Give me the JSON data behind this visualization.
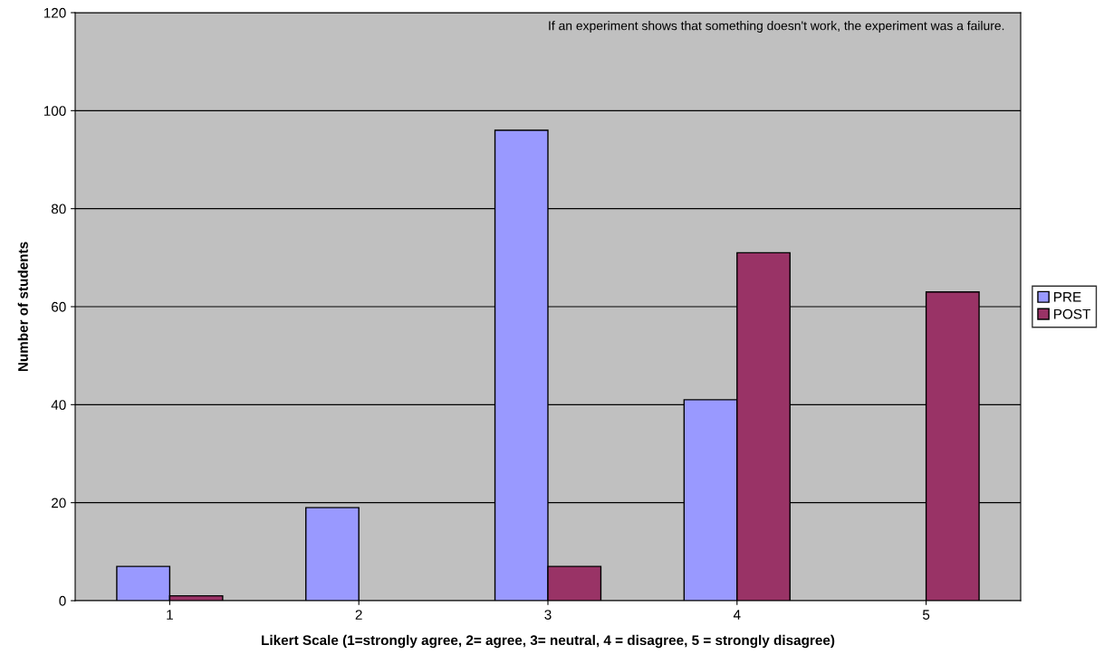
{
  "chart_data": {
    "type": "bar",
    "xlabel": "Likert Scale (1=strongly agree, 2= agree, 3= neutral, 4 = disagree, 5 = strongly disagree)",
    "ylabel": "Number of students",
    "categories": [
      "1",
      "2",
      "3",
      "4",
      "5"
    ],
    "series": [
      {
        "name": "PRE",
        "color": "#9999ff",
        "values": [
          7,
          19,
          96,
          41,
          0
        ]
      },
      {
        "name": "POST",
        "color": "#993366",
        "values": [
          1,
          0,
          7,
          71,
          63
        ]
      }
    ],
    "ylim": [
      0,
      120
    ],
    "yticks": [
      0,
      20,
      40,
      60,
      80,
      100,
      120
    ],
    "grid": "y",
    "legend": "right",
    "annotations": [
      "If an experiment shows that something doesn't work, the experiment was a failure."
    ]
  }
}
